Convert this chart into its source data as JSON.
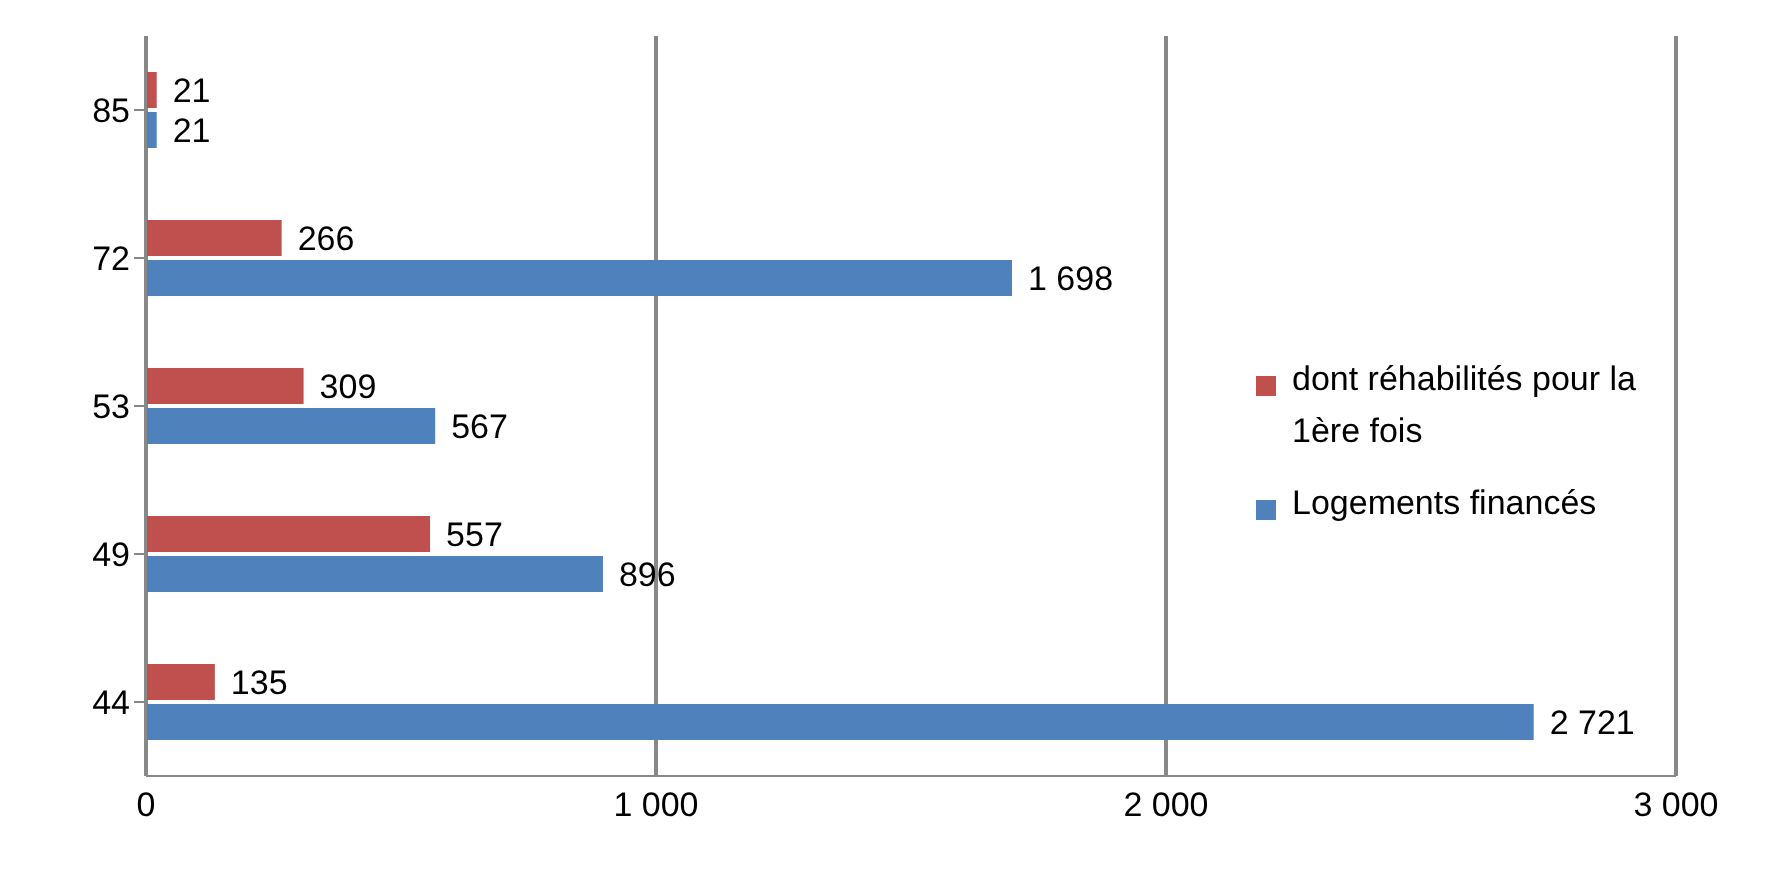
{
  "chart_data": {
    "type": "bar",
    "orientation": "horizontal",
    "categories": [
      "85",
      "72",
      "53",
      "49",
      "44"
    ],
    "series": [
      {
        "name": "dont réhabilités pour la 1ère fois",
        "color": "#c0504d",
        "values": [
          21,
          266,
          309,
          557,
          135
        ],
        "value_labels": [
          "21",
          "266",
          "309",
          "557",
          "135"
        ]
      },
      {
        "name": "Logements financés",
        "color": "#4f81bd",
        "values": [
          21,
          1698,
          567,
          896,
          2721
        ],
        "value_labels": [
          "21",
          "1 698",
          "567",
          "896",
          "2 721"
        ]
      }
    ],
    "xlim": [
      0,
      3000
    ],
    "xticks": [
      0,
      {
        "value": 1000,
        "label": "1 000"
      },
      {
        "value": 2000,
        "label": "2 000"
      },
      {
        "value": 3000,
        "label": "3 000"
      }
    ],
    "grid": "x",
    "legend": "right"
  }
}
